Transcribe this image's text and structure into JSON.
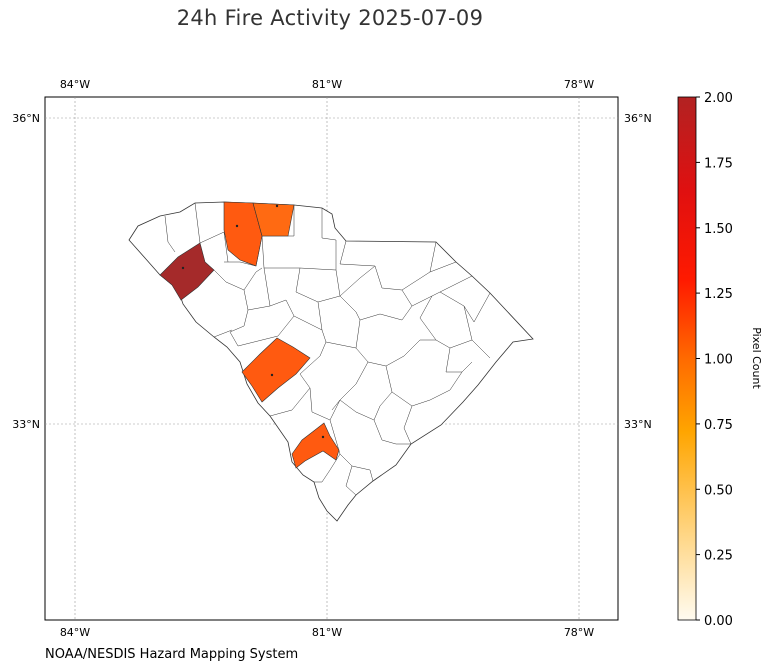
{
  "title": "24h Fire Activity 2025-07-09",
  "footer": "NOAA/NESDIS Hazard Mapping System",
  "chart_data": {
    "type": "choropleth",
    "title": "24h Fire Activity 2025-07-09",
    "region": "South Carolina counties",
    "x_ticks": [
      "84°W",
      "81°W",
      "78°W"
    ],
    "y_ticks": [
      "36°N",
      "33°N"
    ],
    "grid": true,
    "colorbar": {
      "label": "Pixel Count",
      "range": [
        0,
        2
      ],
      "ticks": [
        "0.00",
        "0.25",
        "0.50",
        "0.75",
        "1.00",
        "1.25",
        "1.50",
        "1.75",
        "2.00"
      ],
      "colormap": [
        "#fffbf0",
        "#ffd27a",
        "#ffa500",
        "#ff6a00",
        "#ff1a00",
        "#e01010",
        "#b22222"
      ]
    },
    "highlighted_counties": [
      {
        "value": 2,
        "color": "#a52a2a"
      },
      {
        "value": 1,
        "color": "#ff5a10"
      },
      {
        "value": 1,
        "color": "#ff5a10"
      },
      {
        "value": 1,
        "color": "#ff5a10"
      },
      {
        "value": 1,
        "color": "#ff5a10"
      }
    ]
  }
}
